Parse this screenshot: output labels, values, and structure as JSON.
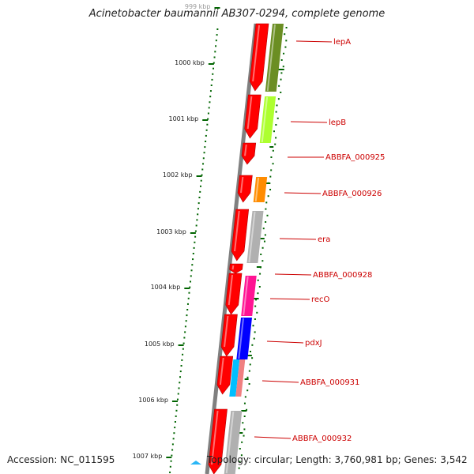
{
  "header": {
    "title": "Acinetobacter baumannii AB307-0294, complete genome"
  },
  "footer": {
    "accession": "Accession: NC_011595",
    "summary": "Topology: circular; Length: 3,760,981 bp; Genes: 3,542"
  },
  "axis": {
    "ticks": [
      "999 kbp",
      "1000 kbp",
      "1001 kbp",
      "1002 kbp",
      "1003 kbp",
      "1004 kbp",
      "1005 kbp",
      "1006 kbp",
      "1007 kbp"
    ]
  },
  "genes": [
    {
      "label": "lepA",
      "color": "#6b8e23"
    },
    {
      "label": "lepB",
      "color": "#adff2f"
    },
    {
      "label": "ABBFA_000925",
      "color": "#ff0000"
    },
    {
      "label": "ABBFA_000926",
      "color": "#ff8c00"
    },
    {
      "label": "era",
      "color": "#b0b0b0"
    },
    {
      "label": "ABBFA_000928",
      "color": "#ff0000"
    },
    {
      "label": "recO",
      "color": "#ff1493"
    },
    {
      "label": "pdxJ",
      "color": "#0000ff"
    },
    {
      "label": "ABBFA_000931",
      "color": "#f08080"
    },
    {
      "label": "ABBFA_000932",
      "color": "#b0b0b0"
    }
  ],
  "colors": {
    "cds": "#ff0000",
    "label": "#cc0000",
    "tick": "#006400",
    "backbone": "#808080",
    "marker": "#29b6f6"
  }
}
